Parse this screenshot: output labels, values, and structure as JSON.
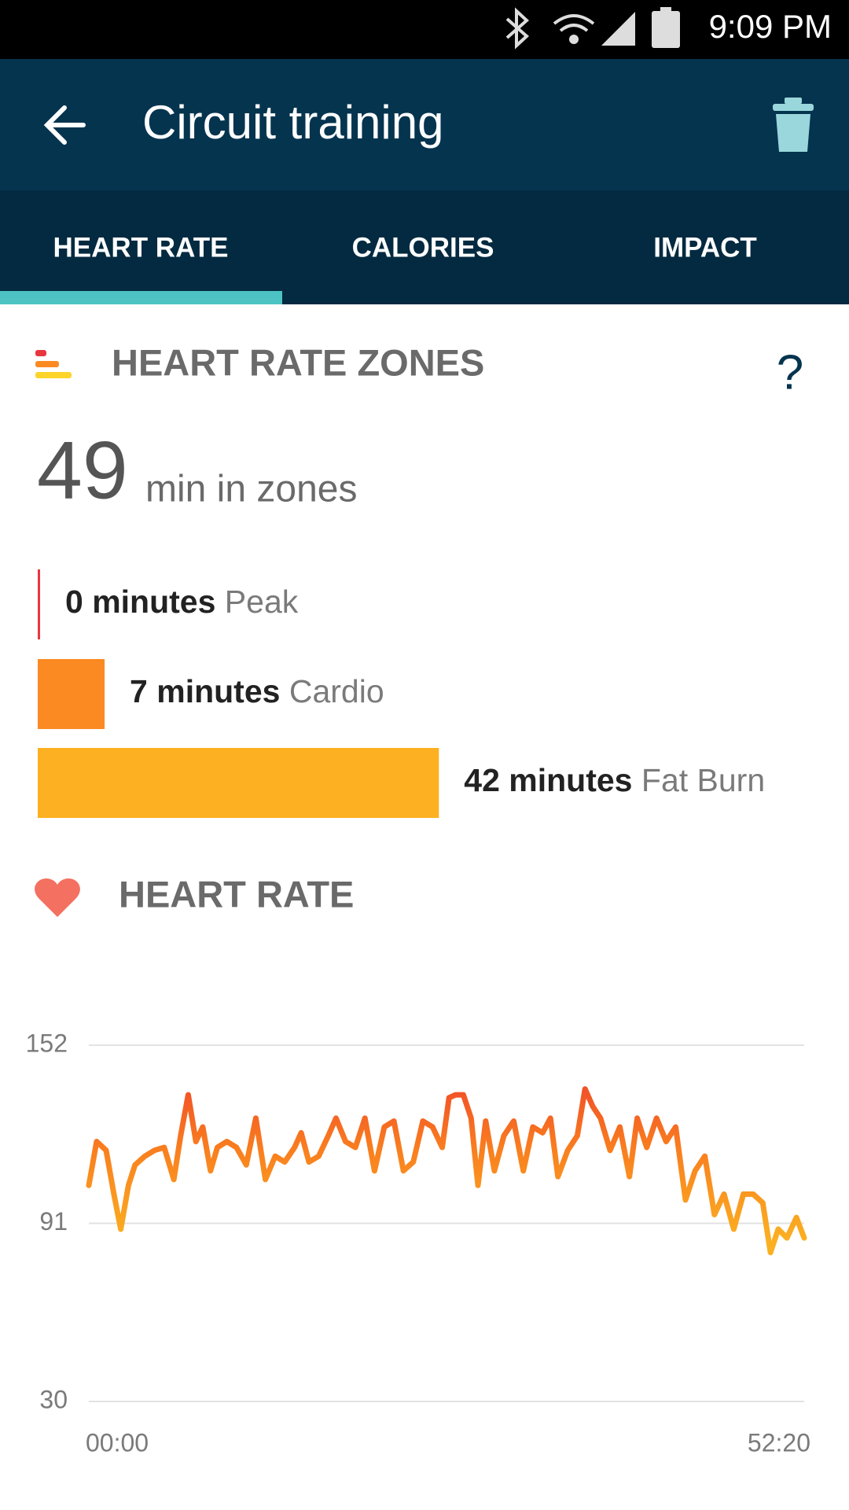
{
  "status_bar": {
    "time": "9:09 PM"
  },
  "app_bar": {
    "title": "Circuit training"
  },
  "tabs": [
    "HEART RATE",
    "CALORIES",
    "IMPACT"
  ],
  "zones": {
    "title": "HEART RATE ZONES",
    "total": "49",
    "total_label": "min in zones",
    "items": [
      {
        "value": 0,
        "value_label": "0 minutes",
        "name": "Peak",
        "color": "#e8363e"
      },
      {
        "value": 7,
        "value_label": "7 minutes",
        "name": "Cardio",
        "color": "#fb8a22"
      },
      {
        "value": 42,
        "value_label": "42 minutes",
        "name": "Fat Burn",
        "color": "#fdb022"
      }
    ]
  },
  "chart_data": {
    "type": "line",
    "title": "HEART RATE",
    "color": "#f9801f",
    "grid": true,
    "x": [
      0,
      34,
      76,
      110,
      140,
      174,
      203,
      246,
      288,
      331,
      373,
      403,
      436,
      470,
      500,
      534,
      564,
      606,
      648,
      691,
      733,
      775,
      818,
      860,
      903,
      932,
      966,
      1009,
      1051,
      1085,
      1127,
      1170,
      1212,
      1254,
      1297,
      1339,
      1381,
      1424,
      1466,
      1509,
      1551,
      1581,
      1610,
      1644,
      1678,
      1708,
      1742,
      1780,
      1822,
      1865,
      1907,
      1949,
      1992,
      2026,
      2059,
      2102,
      2144,
      2178,
      2212,
      2246,
      2288,
      2331,
      2373,
      2407,
      2449,
      2492,
      2534,
      2576,
      2619,
      2661,
      2704,
      2746,
      2788,
      2831,
      2873,
      2916,
      2958,
      2992,
      3026,
      3064,
      3106,
      3140
    ],
    "values": [
      104,
      119,
      116,
      101,
      89,
      104,
      111,
      114,
      116,
      117,
      106,
      121,
      135,
      119,
      124,
      109,
      117,
      119,
      117,
      111,
      127,
      106,
      114,
      112,
      117,
      122,
      112,
      114,
      121,
      127,
      119,
      117,
      127,
      109,
      124,
      126,
      109,
      112,
      126,
      124,
      117,
      134,
      135,
      135,
      127,
      104,
      126,
      109,
      121,
      126,
      109,
      124,
      122,
      127,
      107,
      116,
      121,
      137,
      131,
      127,
      116,
      124,
      107,
      127,
      117,
      127,
      119,
      124,
      99,
      109,
      114,
      94,
      101,
      89,
      101,
      101,
      98,
      81,
      89,
      86,
      93,
      86
    ],
    "xlim": [
      0,
      3140
    ],
    "ylim": [
      30,
      152
    ],
    "xticks": [
      {
        "value": 0,
        "label": "00:00"
      },
      {
        "value": 3140,
        "label": "52:20"
      }
    ],
    "yticks": [
      30,
      91,
      152
    ]
  }
}
